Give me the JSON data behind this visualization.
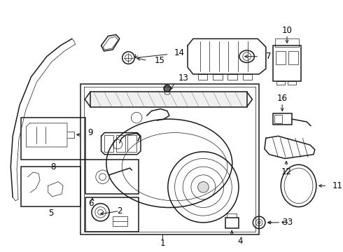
{
  "bg_color": "#ffffff",
  "line_color": "#1a1a1a",
  "label_color": "#000000",
  "lw": 0.8,
  "lw_thin": 0.5,
  "lw_thick": 1.1
}
